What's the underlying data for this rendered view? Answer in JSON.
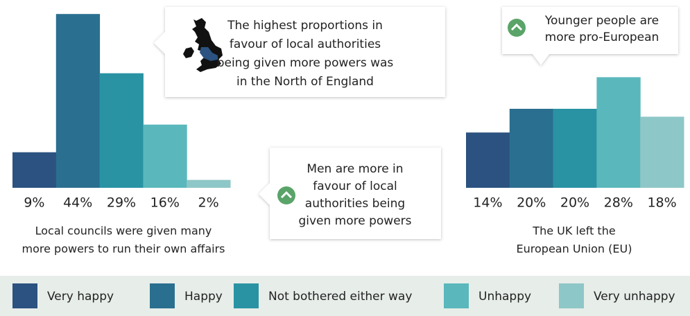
{
  "chart_data": [
    {
      "type": "bar",
      "values": [
        9,
        44,
        29,
        16,
        2
      ],
      "value_labels": [
        "9%",
        "44%",
        "29%",
        "16%",
        "2%"
      ],
      "caption": [
        "Local councils were given many",
        "more powers to run their own affairs"
      ]
    },
    {
      "type": "bar",
      "values": [
        14,
        20,
        20,
        28,
        18
      ],
      "value_labels": [
        "14%",
        "20%",
        "20%",
        "28%",
        "18%"
      ],
      "caption": [
        "The UK left the",
        "European Union (EU)"
      ]
    }
  ],
  "legend": [
    {
      "name": "Very happy",
      "color": "#2b5280"
    },
    {
      "name": "Happy",
      "color": "#2a6f8f"
    },
    {
      "name": "Not bothered either way",
      "color": "#2993a3"
    },
    {
      "name": "Unhappy",
      "color": "#5ab8bc"
    },
    {
      "name": "Very unhappy",
      "color": "#8ec7c8"
    }
  ],
  "callouts": [
    {
      "lines": [
        "The highest proportions in",
        "favour of local authorities",
        "being given more powers was",
        "in the North of England"
      ]
    },
    {
      "lines": [
        "Men are more in",
        "favour of local",
        "authorities being",
        "given more powers"
      ]
    },
    {
      "lines": [
        "Younger people are",
        "more pro-European"
      ]
    }
  ]
}
